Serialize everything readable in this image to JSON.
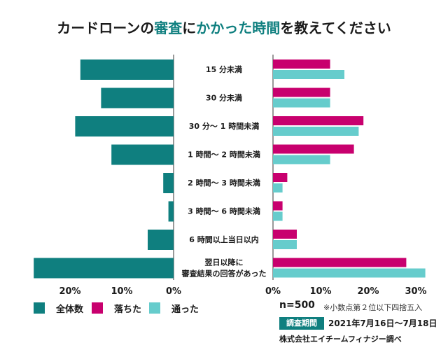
{
  "chart_data": {
    "type": "bar",
    "title_parts": [
      "カードローンの",
      "審査",
      "に",
      "かかった時間",
      "を教えてください"
    ],
    "categories": [
      [
        "15 分未満"
      ],
      [
        "30 分未満"
      ],
      [
        "30 分〜 1 時間未満"
      ],
      [
        "1 時間〜 2 時間未満"
      ],
      [
        "2 時間〜 3 時間未満"
      ],
      [
        "3 時間〜 6 時間未満"
      ],
      [
        "6 時間以上当日以内"
      ],
      [
        "翌日以降に",
        "審査結果の回答があった"
      ]
    ],
    "series": [
      {
        "name": "全体数",
        "color": "#0f7f7f",
        "values": [
          18,
          14,
          19,
          12,
          2,
          1,
          5,
          27
        ]
      },
      {
        "name": "落ちた",
        "color": "#c8006e",
        "values": [
          12,
          12,
          19,
          17,
          3,
          2,
          5,
          28
        ]
      },
      {
        "name": "通った",
        "color": "#66cccc",
        "values": [
          15,
          12,
          18,
          12,
          2,
          2,
          5,
          32
        ]
      }
    ],
    "left_axis": {
      "ticks": [
        "20%",
        "10%",
        "0%"
      ],
      "max": 26
    },
    "right_axis": {
      "ticks": [
        "0%",
        "10%",
        "20%",
        "30%"
      ],
      "max": 30
    }
  },
  "notes": {
    "n": "n=500",
    "rounding": "※小数点第２位以下四捨五入",
    "period_label": "調査期間",
    "period_value": "2021年7月16日〜7月18日",
    "source": "株式会社エイチームフィナジー調べ"
  }
}
